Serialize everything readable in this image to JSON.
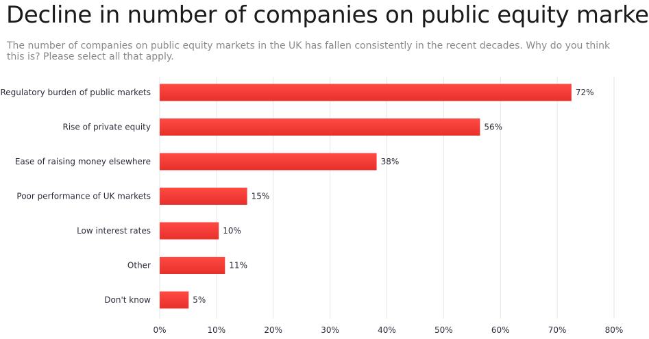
{
  "chart_data": {
    "type": "bar",
    "orientation": "horizontal",
    "title": "Decline in number of companies on public equity markets",
    "subtitle": "The number of companies on public equity markets in the UK has fallen consistently in the recent decades. Why do you think this is? Please select all that apply.",
    "categories": [
      "Regulatory burden of public markets",
      "Rise of private equity",
      "Ease of raising money elsewhere",
      "Poor performance of UK markets",
      "Low interest rates",
      "Other",
      "Don't know"
    ],
    "values": [
      72.5,
      56.4,
      38.2,
      15.4,
      10.4,
      11.5,
      5.1
    ],
    "value_labels": [
      "72%",
      "56%",
      "38%",
      "15%",
      "10%",
      "11%",
      "5%"
    ],
    "xlim": [
      0,
      80
    ],
    "xticks": [
      0,
      10,
      20,
      30,
      40,
      50,
      60,
      70,
      80
    ],
    "xtick_labels": [
      "0%",
      "10%",
      "20%",
      "30%",
      "40%",
      "50%",
      "60%",
      "70%",
      "80%"
    ],
    "xlabel": "",
    "ylabel": "",
    "grid": true,
    "bar_color_top": "#ff4a44",
    "bar_color_bottom": "#e8302b"
  }
}
